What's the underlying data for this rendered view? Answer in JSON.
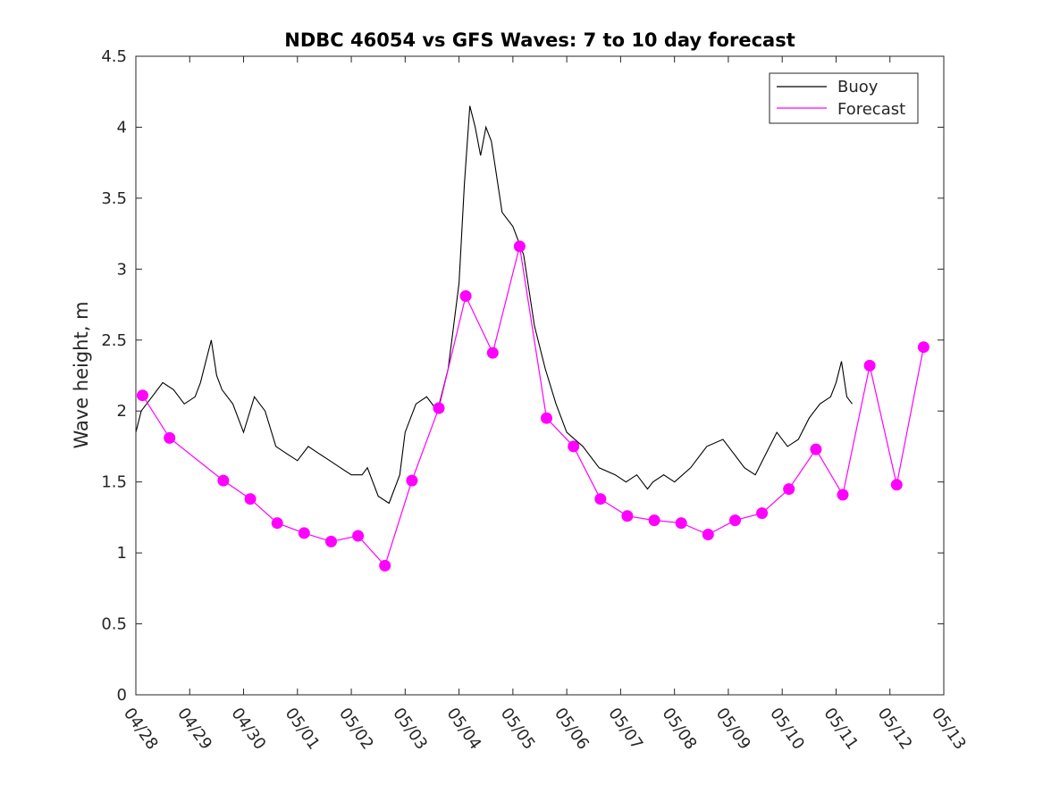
{
  "chart_data": {
    "type": "line",
    "title": "NDBC 46054 vs GFS Waves: 7 to 10 day forecast",
    "xlabel": "",
    "ylabel": "Wave height, m",
    "xlim": [
      "04/28",
      "05/13"
    ],
    "ylim": [
      0,
      4.5
    ],
    "x_ticks": [
      "04/28",
      "04/29",
      "04/30",
      "05/01",
      "05/02",
      "05/03",
      "05/04",
      "05/05",
      "05/06",
      "05/07",
      "05/08",
      "05/09",
      "05/10",
      "05/11",
      "05/12",
      "05/13"
    ],
    "y_ticks": [
      "0",
      "0.5",
      "1",
      "1.5",
      "2",
      "2.5",
      "3",
      "3.5",
      "4",
      "4.5"
    ],
    "grid": false,
    "legend": {
      "position": "top-right",
      "entries": [
        "Buoy",
        "Forecast"
      ]
    },
    "colors": {
      "buoy": "#000000",
      "forecast": "#ff00ff"
    },
    "series": [
      {
        "name": "Buoy",
        "x_days": [
          0,
          0.1,
          0.3,
          0.5,
          0.7,
          0.9,
          1.1,
          1.2,
          1.3,
          1.4,
          1.5,
          1.6,
          1.8,
          2.0,
          2.2,
          2.4,
          2.6,
          2.8,
          3.0,
          3.2,
          3.4,
          3.6,
          3.8,
          4.0,
          4.2,
          4.3,
          4.5,
          4.7,
          4.9,
          5.0,
          5.2,
          5.4,
          5.6,
          5.8,
          6.0,
          6.1,
          6.2,
          6.3,
          6.4,
          6.5,
          6.6,
          6.8,
          7.0,
          7.2,
          7.4,
          7.6,
          7.8,
          8.0,
          8.3,
          8.6,
          8.9,
          9.1,
          9.3,
          9.5,
          9.6,
          9.8,
          10.0,
          10.3,
          10.6,
          10.9,
          11.1,
          11.3,
          11.5,
          11.7,
          11.9,
          12.1,
          12.3,
          12.5,
          12.7,
          12.9,
          13.0,
          13.1,
          13.2,
          13.3
        ],
        "values": [
          1.85,
          2.0,
          2.1,
          2.2,
          2.15,
          2.05,
          2.1,
          2.2,
          2.35,
          2.5,
          2.25,
          2.15,
          2.05,
          1.85,
          2.1,
          2.0,
          1.75,
          1.7,
          1.65,
          1.75,
          1.7,
          1.65,
          1.6,
          1.55,
          1.55,
          1.6,
          1.4,
          1.35,
          1.55,
          1.85,
          2.05,
          2.1,
          2.0,
          2.3,
          2.9,
          3.6,
          4.15,
          4.0,
          3.8,
          4.0,
          3.9,
          3.4,
          3.3,
          3.1,
          2.6,
          2.3,
          2.05,
          1.85,
          1.75,
          1.6,
          1.55,
          1.5,
          1.55,
          1.45,
          1.5,
          1.55,
          1.5,
          1.6,
          1.75,
          1.8,
          1.7,
          1.6,
          1.55,
          1.7,
          1.85,
          1.75,
          1.8,
          1.95,
          2.05,
          2.1,
          2.2,
          2.35,
          2.1,
          2.05
        ]
      },
      {
        "name": "Forecast",
        "x_days": [
          0.125,
          0.625,
          1.625,
          2.125,
          2.625,
          3.125,
          3.625,
          4.125,
          4.625,
          5.125,
          5.625,
          6.125,
          6.625,
          7.125,
          7.625,
          8.125,
          8.625,
          9.125,
          9.625,
          10.125,
          10.625,
          11.125,
          11.625,
          12.125,
          12.625,
          13.125,
          13.625,
          14.125,
          14.625
        ],
        "values": [
          2.11,
          1.81,
          1.51,
          1.38,
          1.21,
          1.14,
          1.08,
          1.12,
          0.91,
          1.51,
          2.02,
          2.81,
          2.41,
          3.16,
          1.95,
          1.75,
          1.38,
          1.26,
          1.23,
          1.21,
          1.13,
          1.23,
          1.28,
          1.45,
          1.73,
          1.41,
          2.32,
          1.48,
          2.45
        ]
      }
    ]
  }
}
